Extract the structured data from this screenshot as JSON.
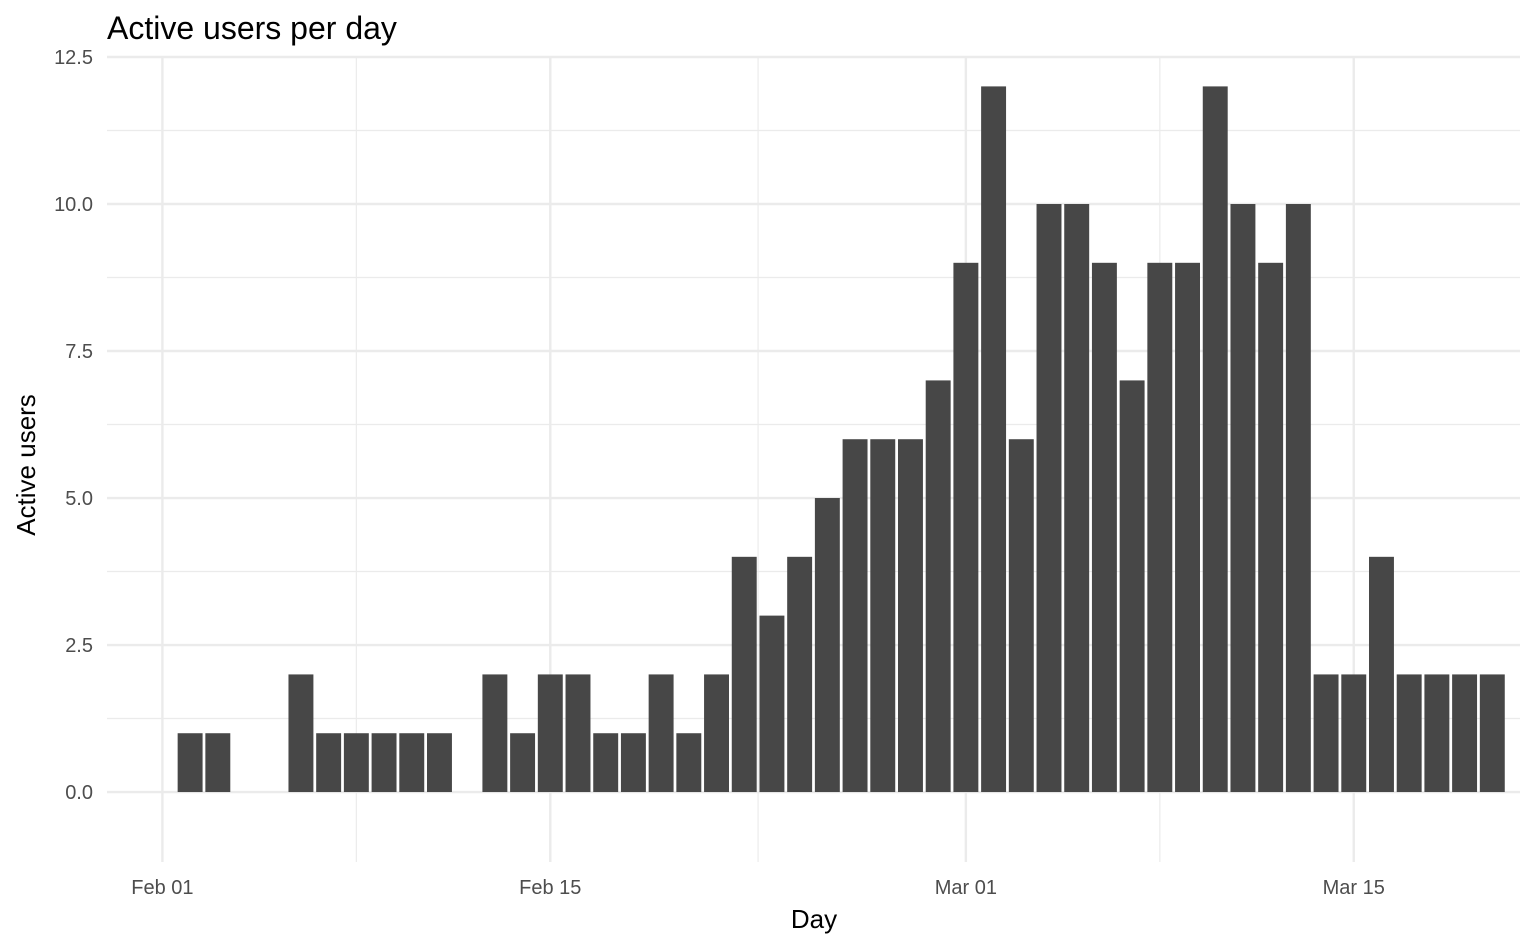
{
  "chart_data": {
    "type": "bar",
    "title": "Active users per day",
    "xlabel": "Day",
    "ylabel": "Active users",
    "x": [
      "2024-02-02",
      "2024-02-03",
      "2024-02-06",
      "2024-02-07",
      "2024-02-08",
      "2024-02-09",
      "2024-02-10",
      "2024-02-11",
      "2024-02-13",
      "2024-02-14",
      "2024-02-15",
      "2024-02-16",
      "2024-02-17",
      "2024-02-18",
      "2024-02-19",
      "2024-02-20",
      "2024-02-21",
      "2024-02-22",
      "2024-02-23",
      "2024-02-24",
      "2024-02-25",
      "2024-02-26",
      "2024-02-27",
      "2024-02-28",
      "2024-02-29",
      "2024-03-01",
      "2024-03-02",
      "2024-03-03",
      "2024-03-04",
      "2024-03-05",
      "2024-03-06",
      "2024-03-07",
      "2024-03-08",
      "2024-03-09",
      "2024-03-10",
      "2024-03-11",
      "2024-03-12",
      "2024-03-13",
      "2024-03-14",
      "2024-03-15",
      "2024-03-16",
      "2024-03-17",
      "2024-03-18",
      "2024-03-19",
      "2024-03-20"
    ],
    "values": [
      1,
      1,
      2,
      1,
      1,
      1,
      1,
      1,
      2,
      1,
      2,
      2,
      1,
      1,
      2,
      1,
      2,
      4,
      3,
      4,
      5,
      6,
      6,
      6,
      7,
      9,
      12,
      6,
      10,
      10,
      9,
      7,
      9,
      9,
      12,
      10,
      9,
      10,
      2,
      2,
      4,
      2,
      2,
      2,
      2
    ],
    "xlim": [
      "2024-01-30",
      "2024-03-21"
    ],
    "ylim": [
      -1.19,
      12.5
    ],
    "x_ticks": [
      "2024-02-01",
      "2024-02-15",
      "2024-03-01",
      "2024-03-15"
    ],
    "x_tick_labels": [
      "Feb 01",
      "Feb 15",
      "Mar 01",
      "Mar 15"
    ],
    "y_ticks": [
      0,
      2.5,
      5,
      7.5,
      10,
      12.5
    ],
    "y_tick_labels": [
      "0.0",
      "2.5",
      "5.0",
      "7.5",
      "10.0",
      "12.5"
    ],
    "grid": true,
    "legend": "none",
    "colors": {
      "bar": "#474747",
      "grid": "#ebebeb",
      "tick_text": "#4d4d4d",
      "text": "#000000",
      "background": "#ffffff"
    }
  }
}
